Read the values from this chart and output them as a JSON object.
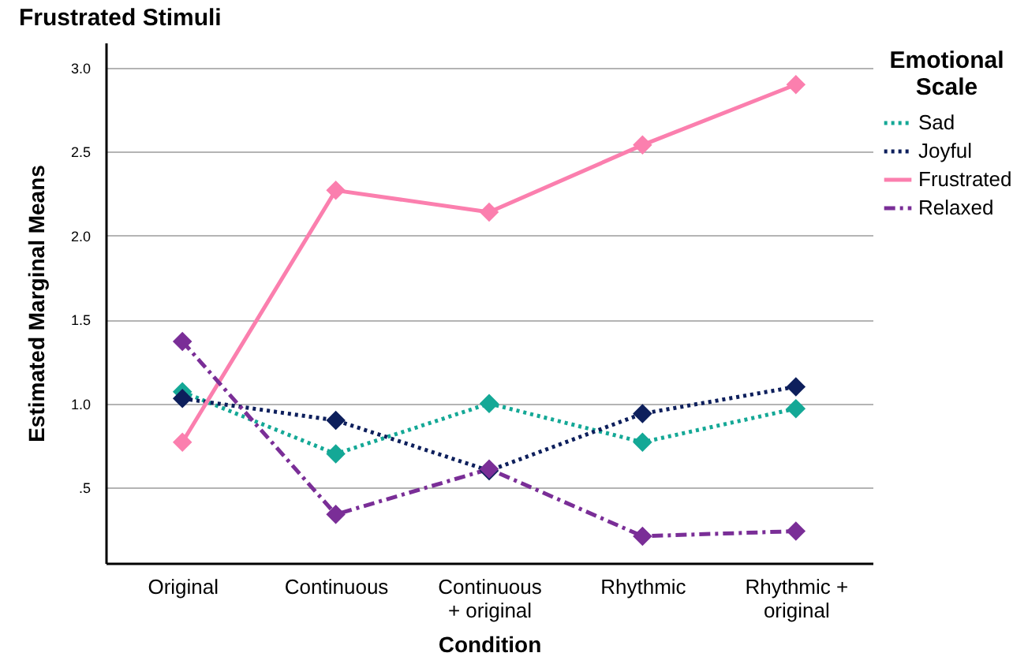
{
  "chart_data": {
    "type": "line",
    "title": "Frustrated Stimuli",
    "xlabel": "Condition",
    "ylabel": "Estimated Marginal Means",
    "legend_title": "Emotional Scale",
    "categories": [
      "Original",
      "Continuous",
      "Continuous\n+ original",
      "Rhythmic",
      "Rhythmic +\noriginal"
    ],
    "series": [
      {
        "name": "Sad",
        "color": "#14a896",
        "line_style": "dotted",
        "values": [
          1.07,
          0.7,
          1.0,
          0.77,
          0.97
        ]
      },
      {
        "name": "Joyful",
        "color": "#0d1f5c",
        "line_style": "dotted",
        "values": [
          1.03,
          0.9,
          0.6,
          0.94,
          1.1
        ]
      },
      {
        "name": "Frustrated",
        "color": "#fb7fae",
        "line_style": "solid",
        "values": [
          0.77,
          2.27,
          2.14,
          2.54,
          2.9
        ]
      },
      {
        "name": "Relaxed",
        "color": "#7a2e97",
        "line_style": "dashed",
        "values": [
          1.37,
          0.34,
          0.61,
          0.21,
          0.24
        ]
      }
    ],
    "ylim": [
      0.05,
      3.15
    ],
    "yticks": [
      {
        "value": 0.5,
        "label": ".5"
      },
      {
        "value": 1,
        "label": "1.0"
      },
      {
        "value": 1.5,
        "label": "1.5"
      },
      {
        "value": 2,
        "label": "2.0"
      },
      {
        "value": 2.5,
        "label": "2.5"
      },
      {
        "value": 3,
        "label": "3.0"
      }
    ],
    "grid": "y",
    "legend": "top right",
    "marker": "diamond"
  }
}
